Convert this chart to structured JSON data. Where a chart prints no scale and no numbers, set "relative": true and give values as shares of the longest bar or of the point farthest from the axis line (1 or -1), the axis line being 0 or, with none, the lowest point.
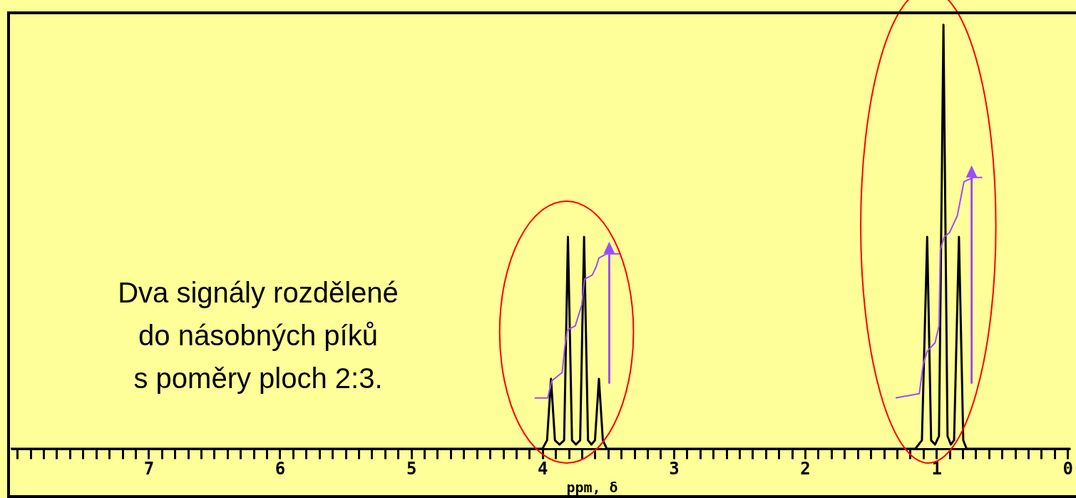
{
  "chart_data": {
    "type": "line",
    "relative": true,
    "xlabel": "ppm, δ",
    "xlim": [
      8.05,
      -0.02
    ],
    "xticks": [
      {
        "value": 8,
        "label": null
      },
      {
        "value": 7.9,
        "label": null
      },
      {
        "value": 7.8,
        "label": null
      },
      {
        "value": 7.7,
        "label": null
      },
      {
        "value": 7.6,
        "label": null
      },
      {
        "value": 7.5,
        "label": null
      },
      {
        "value": 7.4,
        "label": null
      },
      {
        "value": 7.3,
        "label": null
      },
      {
        "value": 7.2,
        "label": null
      },
      {
        "value": 7.1,
        "label": null
      },
      7,
      {
        "value": 6.9,
        "label": null
      },
      {
        "value": 6.8,
        "label": null
      },
      {
        "value": 6.7,
        "label": null
      },
      {
        "value": 6.6,
        "label": null
      },
      {
        "value": 6.5,
        "label": null
      },
      {
        "value": 6.4,
        "label": null
      },
      {
        "value": 6.3,
        "label": null
      },
      {
        "value": 6.2,
        "label": null
      },
      {
        "value": 6.1,
        "label": null
      },
      6,
      {
        "value": 5.9,
        "label": null
      },
      {
        "value": 5.8,
        "label": null
      },
      {
        "value": 5.7,
        "label": null
      },
      {
        "value": 5.6,
        "label": null
      },
      {
        "value": 5.5,
        "label": null
      },
      {
        "value": 5.4,
        "label": null
      },
      {
        "value": 5.3,
        "label": null
      },
      {
        "value": 5.2,
        "label": null
      },
      {
        "value": 5.1,
        "label": null
      },
      5,
      {
        "value": 4.9,
        "label": null
      },
      {
        "value": 4.8,
        "label": null
      },
      {
        "value": 4.7,
        "label": null
      },
      {
        "value": 4.6,
        "label": null
      },
      {
        "value": 4.5,
        "label": null
      },
      {
        "value": 4.4,
        "label": null
      },
      {
        "value": 4.3,
        "label": null
      },
      {
        "value": 4.2,
        "label": null
      },
      {
        "value": 4.1,
        "label": null
      },
      4,
      {
        "value": 3.9,
        "label": null
      },
      {
        "value": 3.8,
        "label": null
      },
      {
        "value": 3.7,
        "label": null
      },
      {
        "value": 3.6,
        "label": null
      },
      {
        "value": 3.5,
        "label": null
      },
      {
        "value": 3.4,
        "label": null
      },
      {
        "value": 3.3,
        "label": null
      },
      {
        "value": 3.2,
        "label": null
      },
      {
        "value": 3.1,
        "label": null
      },
      3,
      {
        "value": 2.9,
        "label": null
      },
      {
        "value": 2.8,
        "label": null
      },
      {
        "value": 2.7,
        "label": null
      },
      {
        "value": 2.6,
        "label": null
      },
      {
        "value": 2.5,
        "label": null
      },
      {
        "value": 2.4,
        "label": null
      },
      {
        "value": 2.3,
        "label": null
      },
      {
        "value": 2.2,
        "label": null
      },
      {
        "value": 2.1,
        "label": null
      },
      2,
      {
        "value": 1.9,
        "label": null
      },
      {
        "value": 1.8,
        "label": null
      },
      {
        "value": 1.7,
        "label": null
      },
      {
        "value": 1.6,
        "label": null
      },
      {
        "value": 1.5,
        "label": null
      },
      {
        "value": 1.4,
        "label": null
      },
      {
        "value": 1.3,
        "label": null
      },
      {
        "value": 1.2,
        "label": null
      },
      {
        "value": 1.1,
        "label": null
      },
      1,
      {
        "value": 0.9,
        "label": null
      },
      {
        "value": 0.8,
        "label": null
      },
      {
        "value": 0.7,
        "label": null
      },
      {
        "value": 0.6,
        "label": null
      },
      {
        "value": 0.5,
        "label": null
      },
      {
        "value": 0.4,
        "label": null
      },
      {
        "value": 0.3,
        "label": null
      },
      {
        "value": 0.2,
        "label": null
      },
      {
        "value": 0.1,
        "label": null
      },
      0
    ],
    "annotations": [
      "Dva signály rozdělené\ndo násobných píků\ns poměry ploch 2:3."
    ],
    "series": [
      {
        "color": "#000000",
        "x": [
          8.05,
          4.0,
          3.965,
          3.935,
          3.905,
          3.87,
          3.835,
          3.806,
          3.775,
          3.745,
          3.713,
          3.683,
          3.653,
          3.627,
          3.6,
          3.57,
          3.54,
          3.51,
          1.16,
          1.11,
          1.07,
          1.04,
          1.01,
          0.98,
          0.946,
          0.915,
          0.89,
          0.865,
          0.828,
          0.795,
          0.77,
          -0.02
        ],
        "values": [
          0,
          0,
          0.02,
          0.165,
          0.02,
          0.01,
          0.02,
          0.5,
          0.02,
          0.01,
          0.02,
          0.5,
          0.02,
          0.01,
          0.02,
          0.165,
          0.02,
          0,
          0,
          0.02,
          0.5,
          0.02,
          0.01,
          0.03,
          1,
          0.03,
          0.01,
          0.02,
          0.5,
          0.02,
          0,
          0
        ]
      },
      {
        "color": "#9b4dfe",
        "x": [
          4.06,
          3.96,
          3.93,
          3.85,
          3.83,
          3.81,
          3.75,
          3.7,
          3.68,
          3.62,
          3.59,
          3.57,
          3.51,
          3.41
        ],
        "values": [
          0.12,
          0.12,
          0.16,
          0.18,
          0.24,
          0.28,
          0.29,
          0.34,
          0.4,
          0.41,
          0.43,
          0.45,
          0.46,
          0.46
        ]
      },
      {
        "color": "#9b4dfe",
        "x": [
          1.31,
          1.13,
          1.1,
          1.07,
          1.01,
          0.98,
          0.97,
          0.94,
          0.9,
          0.84,
          0.79,
          0.72,
          0.65
        ],
        "values": [
          0.12,
          0.13,
          0.2,
          0.23,
          0.25,
          0.29,
          0.47,
          0.5,
          0.51,
          0.55,
          0.63,
          0.64,
          0.64
        ]
      }
    ]
  }
}
